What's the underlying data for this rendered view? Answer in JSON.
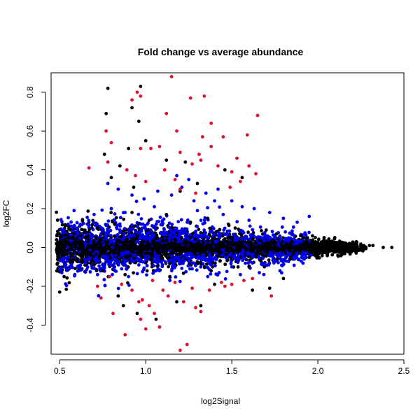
{
  "chart_data": {
    "type": "scatter",
    "title": "Fold change vs average abundance",
    "xlabel": "log2Signal",
    "ylabel": "log2FC",
    "xlim": [
      0.45,
      2.5
    ],
    "ylim": [
      -0.55,
      0.9
    ],
    "xticks": [
      0.5,
      1.0,
      1.5,
      2.0,
      2.5
    ],
    "xtick_labels": [
      "0.5",
      "1.0",
      "1.5",
      "2.0",
      "2.5"
    ],
    "yticks": [
      -0.4,
      -0.2,
      0.0,
      0.2,
      0.4,
      0.6,
      0.8
    ],
    "ytick_labels": [
      "-0.4",
      "-0.2",
      "0.0",
      "0.2",
      "0.4",
      "0.6",
      "0.8"
    ],
    "grid": false,
    "legend": "none",
    "series": [
      {
        "color": "#000000",
        "points": [
          [
            0.78,
            0.82
          ],
          [
            0.97,
            0.83
          ],
          [
            0.77,
            0.69
          ],
          [
            0.92,
            0.72
          ],
          [
            0.96,
            0.65
          ],
          [
            0.76,
            0.48
          ],
          [
            0.9,
            0.51
          ],
          [
            1.0,
            0.55
          ],
          [
            0.85,
            0.42
          ],
          [
            1.12,
            0.45
          ],
          [
            1.23,
            0.44
          ],
          [
            0.8,
            0.36
          ],
          [
            1.3,
            0.33
          ],
          [
            1.46,
            0.4
          ],
          [
            1.56,
            0.36
          ],
          [
            0.93,
            0.31
          ],
          [
            1.2,
            0.29
          ],
          [
            0.87,
            -0.3
          ],
          [
            0.95,
            -0.34
          ],
          [
            1.06,
            -0.37
          ],
          [
            1.08,
            -0.41
          ],
          [
            1.18,
            -0.28
          ],
          [
            1.32,
            -0.3
          ],
          [
            0.84,
            -0.25
          ],
          [
            1.62,
            -0.22
          ],
          [
            1.72,
            -0.21
          ],
          [
            1.4,
            -0.19
          ],
          [
            1.8,
            -0.16
          ],
          [
            0.7,
            -0.09
          ],
          [
            0.6,
            -0.07
          ],
          [
            0.92,
            0.18
          ],
          [
            1.12,
            0.17
          ],
          [
            1.36,
            0.15
          ],
          [
            1.48,
            0.12
          ],
          [
            1.7,
            0.09
          ],
          [
            1.9,
            0.06
          ],
          [
            2.05,
            0.03
          ],
          [
            2.2,
            0.02
          ],
          [
            2.3,
            0.01
          ],
          [
            2.38,
            0.0
          ],
          [
            2.43,
            0.0
          ],
          [
            2.32,
            0.01
          ],
          [
            2.1,
            0.01
          ],
          [
            1.96,
            -0.02
          ],
          [
            2.15,
            -0.01
          ],
          [
            0.5,
            0.02
          ],
          [
            0.52,
            -0.03
          ],
          [
            0.55,
            0.05
          ],
          [
            0.58,
            -0.06
          ],
          [
            0.62,
            0.06
          ],
          [
            0.66,
            -0.08
          ],
          [
            0.72,
            0.1
          ],
          [
            0.75,
            -0.12
          ],
          [
            0.82,
            0.12
          ],
          [
            0.88,
            -0.14
          ],
          [
            1.02,
            0.14
          ],
          [
            1.14,
            -0.15
          ],
          [
            1.26,
            0.13
          ],
          [
            1.38,
            -0.12
          ],
          [
            1.52,
            0.1
          ],
          [
            1.6,
            -0.1
          ],
          [
            1.76,
            0.07
          ],
          [
            1.84,
            -0.06
          ],
          [
            1.94,
            0.05
          ],
          [
            2.0,
            -0.04
          ]
        ]
      },
      {
        "color": "#0000ee",
        "points": [
          [
            0.78,
            0.33
          ],
          [
            0.84,
            0.3
          ],
          [
            0.92,
            0.27
          ],
          [
            0.99,
            0.25
          ],
          [
            1.07,
            0.29
          ],
          [
            1.15,
            0.27
          ],
          [
            1.21,
            0.31
          ],
          [
            1.28,
            0.24
          ],
          [
            1.35,
            0.28
          ],
          [
            1.42,
            0.3
          ],
          [
            1.5,
            0.24
          ],
          [
            1.56,
            0.21
          ],
          [
            1.63,
            0.2
          ],
          [
            1.72,
            0.18
          ],
          [
            1.8,
            0.15
          ],
          [
            1.88,
            0.13
          ],
          [
            1.95,
            0.16
          ],
          [
            1.18,
            0.37
          ],
          [
            1.25,
            0.35
          ],
          [
            1.4,
            0.24
          ],
          [
            0.7,
            0.17
          ],
          [
            0.8,
            0.2
          ],
          [
            0.88,
            0.18
          ],
          [
            1.05,
            0.21
          ],
          [
            1.3,
            0.19
          ],
          [
            1.45,
            0.17
          ],
          [
            1.6,
            0.14
          ],
          [
            0.6,
            0.1
          ],
          [
            0.66,
            0.12
          ],
          [
            0.74,
            0.07
          ],
          [
            0.85,
            0.09
          ],
          [
            0.98,
            0.1
          ],
          [
            1.1,
            0.07
          ],
          [
            1.22,
            0.09
          ],
          [
            1.33,
            0.06
          ],
          [
            1.47,
            0.07
          ],
          [
            1.58,
            0.05
          ],
          [
            1.7,
            0.06
          ],
          [
            1.82,
            0.04
          ],
          [
            1.9,
            0.03
          ],
          [
            0.55,
            -0.05
          ],
          [
            0.65,
            -0.08
          ],
          [
            0.76,
            -0.1
          ],
          [
            0.86,
            -0.11
          ],
          [
            0.96,
            -0.09
          ],
          [
            1.06,
            -0.12
          ],
          [
            1.17,
            -0.1
          ],
          [
            1.27,
            -0.11
          ],
          [
            1.38,
            -0.09
          ],
          [
            1.5,
            -0.1
          ],
          [
            1.62,
            -0.08
          ],
          [
            1.75,
            -0.07
          ],
          [
            1.86,
            -0.06
          ],
          [
            1.96,
            -0.04
          ],
          [
            0.9,
            -0.15
          ],
          [
            1.14,
            -0.17
          ],
          [
            1.36,
            -0.15
          ],
          [
            1.55,
            -0.14
          ],
          [
            1.66,
            -0.13
          ],
          [
            1.78,
            -0.12
          ],
          [
            0.72,
            -0.14
          ],
          [
            0.82,
            -0.12
          ],
          [
            1.0,
            -0.06
          ],
          [
            1.24,
            -0.05
          ],
          [
            1.44,
            -0.04
          ]
        ]
      },
      {
        "color": "#dd1133",
        "points": [
          [
            1.15,
            0.88
          ],
          [
            0.95,
            0.8
          ],
          [
            0.97,
            0.78
          ],
          [
            0.92,
            0.76
          ],
          [
            1.26,
            0.77
          ],
          [
            1.34,
            0.78
          ],
          [
            1.38,
            0.64
          ],
          [
            1.65,
            0.68
          ],
          [
            1.12,
            0.69
          ],
          [
            0.77,
            0.6
          ],
          [
            1.18,
            0.6
          ],
          [
            1.33,
            0.57
          ],
          [
            1.45,
            0.57
          ],
          [
            1.59,
            0.58
          ],
          [
            0.8,
            0.54
          ],
          [
            0.97,
            0.51
          ],
          [
            1.03,
            0.51
          ],
          [
            1.08,
            0.52
          ],
          [
            1.2,
            0.49
          ],
          [
            1.38,
            0.52
          ],
          [
            1.31,
            0.48
          ],
          [
            1.53,
            0.46
          ],
          [
            1.6,
            0.42
          ],
          [
            0.67,
            0.41
          ],
          [
            0.78,
            0.44
          ],
          [
            0.89,
            0.4
          ],
          [
            0.94,
            0.37
          ],
          [
            1.0,
            0.34
          ],
          [
            1.11,
            0.4
          ],
          [
            1.17,
            0.35
          ],
          [
            1.27,
            0.43
          ],
          [
            1.32,
            0.45
          ],
          [
            1.42,
            0.42
          ],
          [
            1.5,
            0.39
          ],
          [
            1.55,
            0.34
          ],
          [
            1.64,
            0.38
          ],
          [
            1.2,
            0.3
          ],
          [
            1.29,
            0.28
          ],
          [
            1.49,
            0.31
          ],
          [
            0.72,
            -0.2
          ],
          [
            0.79,
            -0.15
          ],
          [
            0.86,
            -0.19
          ],
          [
            0.92,
            -0.22
          ],
          [
            0.98,
            -0.27
          ],
          [
            1.04,
            -0.17
          ],
          [
            1.1,
            -0.22
          ],
          [
            1.17,
            -0.18
          ],
          [
            1.22,
            -0.28
          ],
          [
            1.29,
            -0.31
          ],
          [
            1.37,
            -0.22
          ],
          [
            1.44,
            -0.18
          ],
          [
            1.5,
            -0.19
          ],
          [
            1.57,
            -0.17
          ],
          [
            1.62,
            -0.16
          ],
          [
            1.73,
            -0.25
          ],
          [
            0.74,
            -0.26
          ],
          [
            0.81,
            -0.34
          ],
          [
            0.88,
            -0.45
          ],
          [
            0.97,
            -0.37
          ],
          [
            1.0,
            -0.42
          ],
          [
            1.05,
            -0.34
          ],
          [
            1.08,
            -0.41
          ],
          [
            1.13,
            -0.25
          ],
          [
            1.2,
            -0.53
          ],
          [
            1.24,
            -0.5
          ],
          [
            1.32,
            -0.33
          ],
          [
            1.27,
            -0.21
          ],
          [
            0.96,
            -0.28
          ],
          [
            1.02,
            -0.3
          ],
          [
            1.46,
            -0.2
          ]
        ]
      }
    ]
  }
}
